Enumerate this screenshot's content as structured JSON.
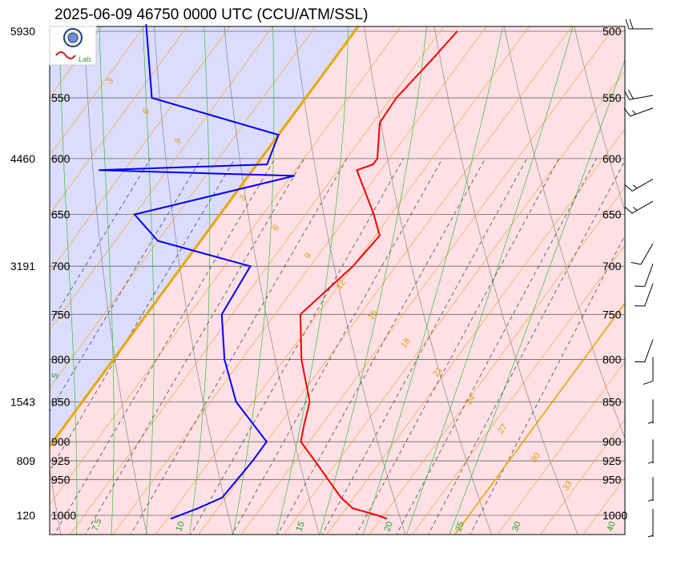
{
  "chart_data": {
    "type": "line",
    "title": "2025-06-09 46750 0000 UTC (CCU/ATM/SSL)",
    "logo_text": "Lab.",
    "pressure_levels": [
      500,
      550,
      600,
      650,
      700,
      750,
      800,
      850,
      900,
      925,
      950,
      1000
    ],
    "height_labels": [
      {
        "p": 500,
        "h": "5930"
      },
      {
        "p": 600,
        "h": "4460"
      },
      {
        "p": 700,
        "h": "3191"
      },
      {
        "p": 850,
        "h": "1543"
      },
      {
        "p": 925,
        "h": "809"
      },
      {
        "p": 1000,
        "h": "120"
      }
    ],
    "plim": [
      1015,
      500
    ],
    "xlim": [
      -25,
      42
    ],
    "temperature": {
      "color": "#ff0000",
      "points": [
        [
          500,
          -8.0
        ],
        [
          520,
          -8.5
        ],
        [
          550,
          -9.4
        ],
        [
          570,
          -9.2
        ],
        [
          600,
          -6.4
        ],
        [
          605,
          -6.4
        ],
        [
          610,
          -7.8
        ],
        [
          650,
          -2.0
        ],
        [
          670,
          0.5
        ],
        [
          700,
          0.0
        ],
        [
          750,
          -2.0
        ],
        [
          800,
          2.0
        ],
        [
          850,
          6.6
        ],
        [
          880,
          8.0
        ],
        [
          900,
          9.0
        ],
        [
          925,
          12.3
        ],
        [
          975,
          18.5
        ],
        [
          990,
          20.8
        ],
        [
          1000,
          24.3
        ],
        [
          1005,
          25.7
        ]
      ]
    },
    "dewpoint": {
      "color": "#0000ff",
      "points": [
        [
          495,
          -45.0
        ],
        [
          550,
          -38.0
        ],
        [
          580,
          -20.0
        ],
        [
          605,
          -18.8
        ],
        [
          610,
          -38.0
        ],
        [
          615,
          -14.6
        ],
        [
          650,
          -30.0
        ],
        [
          675,
          -25.0
        ],
        [
          700,
          -12.0
        ],
        [
          750,
          -11.2
        ],
        [
          800,
          -7.0
        ],
        [
          850,
          -2.0
        ],
        [
          900,
          5.0
        ],
        [
          925,
          5.0
        ],
        [
          975,
          4.6
        ],
        [
          990,
          2.7
        ],
        [
          1005,
          0.4
        ]
      ]
    },
    "mixing_ratio_labels": [
      "3",
      "6",
      "9",
      "3",
      "6",
      "9",
      "12",
      "15",
      "18",
      "21",
      "24",
      "27",
      "30",
      "33"
    ],
    "theta_labels": [
      "5",
      "7.5",
      "10",
      "15",
      "20",
      "25",
      "30",
      "40"
    ],
    "wind_barbs": [
      {
        "p": 500,
        "dir": 270,
        "kt": 20
      },
      {
        "p": 550,
        "dir": 260,
        "kt": 20
      },
      {
        "p": 560,
        "dir": 250,
        "kt": 15
      },
      {
        "p": 620,
        "dir": 240,
        "kt": 15
      },
      {
        "p": 640,
        "dir": 240,
        "kt": 15
      },
      {
        "p": 680,
        "dir": 210,
        "kt": 10
      },
      {
        "p": 700,
        "dir": 200,
        "kt": 10
      },
      {
        "p": 720,
        "dir": 200,
        "kt": 10
      },
      {
        "p": 780,
        "dir": 200,
        "kt": 10
      },
      {
        "p": 800,
        "dir": 180,
        "kt": 10
      },
      {
        "p": 850,
        "dir": 180,
        "kt": 5
      },
      {
        "p": 900,
        "dir": 180,
        "kt": 5
      },
      {
        "p": 950,
        "dir": 180,
        "kt": 5
      },
      {
        "p": 1000,
        "dir": 180,
        "kt": 5
      }
    ]
  }
}
